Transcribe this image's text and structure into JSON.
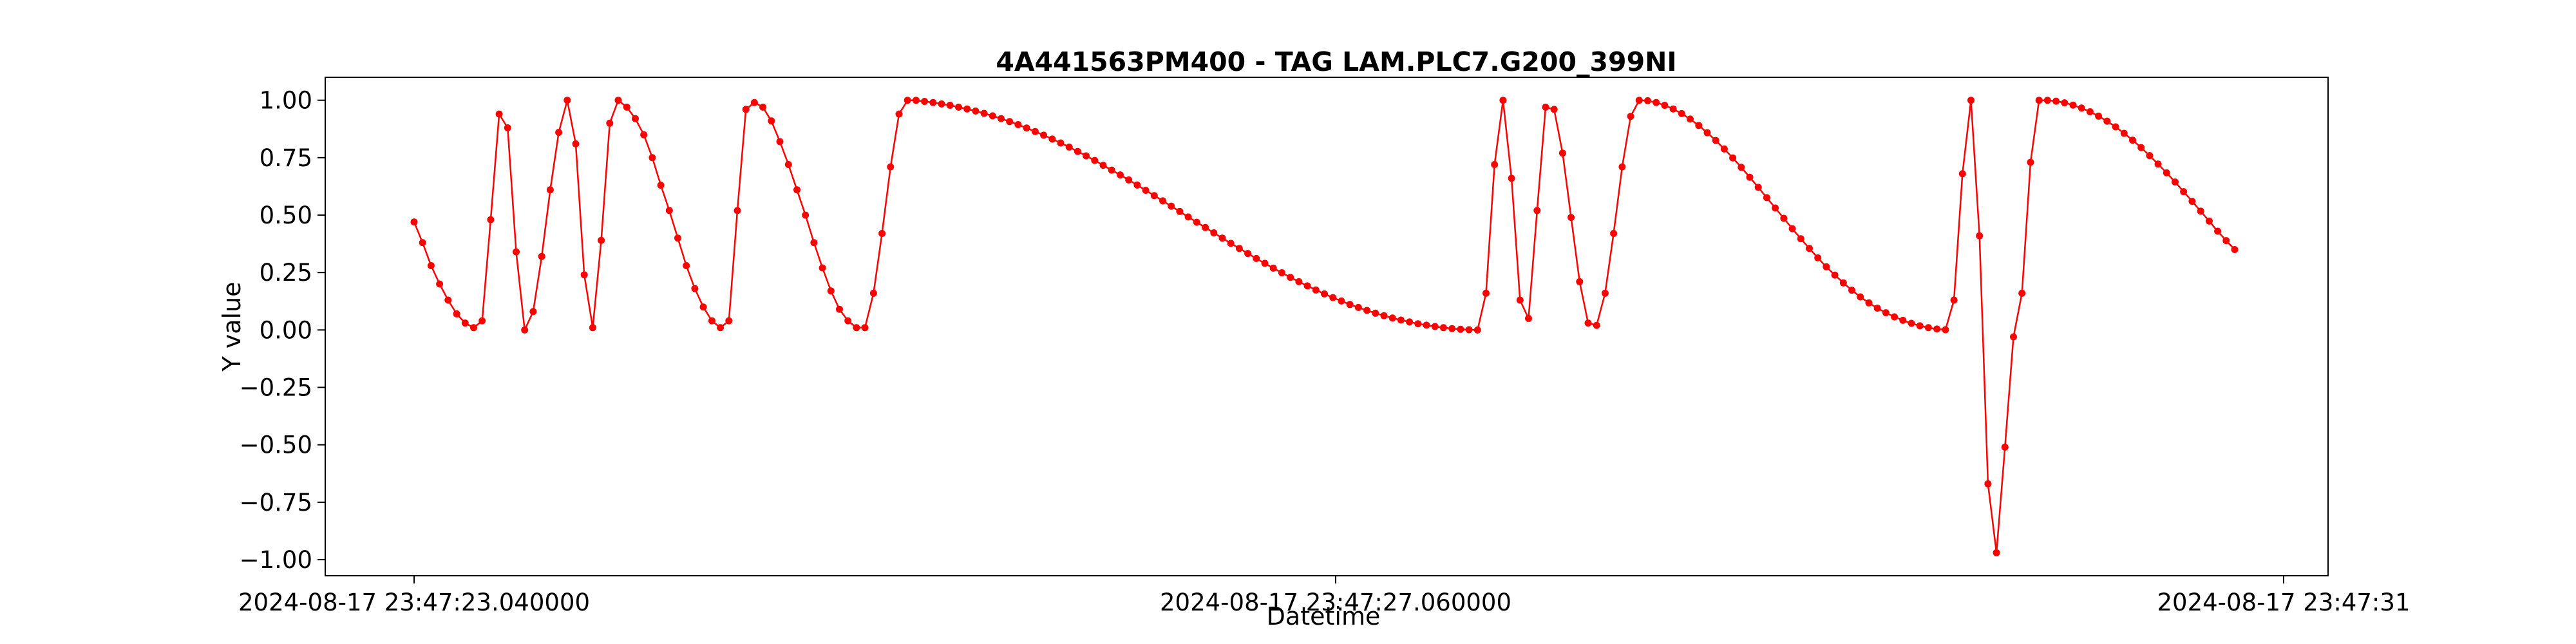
{
  "chart_data": {
    "type": "line",
    "title": "4A441563PM400 - TAG LAM.PLC7.G200_399NI",
    "xlabel": "Datetime",
    "ylabel": "Y value",
    "x_tick_labels": [
      "2024-08-17 23:47:23.040000",
      "2024-08-17 23:47:27.060000",
      "2024-08-17 23:47:31"
    ],
    "y_ticks": [
      -1.0,
      -0.75,
      -0.5,
      -0.25,
      0.0,
      0.25,
      0.5,
      0.75,
      1.0
    ],
    "y_tick_labels": [
      "−1.00",
      "−0.75",
      "−0.50",
      "−0.25",
      "0.00",
      "0.25",
      "0.50",
      "0.75",
      "1.00"
    ],
    "ylim": [
      -1.07,
      1.1
    ],
    "grid": false,
    "series": [
      {
        "color": "#ff0000",
        "marker": "circle",
        "values": [
          0.47,
          0.38,
          0.28,
          0.2,
          0.13,
          0.07,
          0.03,
          0.01,
          0.04,
          0.48,
          0.94,
          0.88,
          0.34,
          0.0,
          0.08,
          0.32,
          0.61,
          0.86,
          1.0,
          0.81,
          0.24,
          0.01,
          0.39,
          0.9,
          1.0,
          0.97,
          0.92,
          0.85,
          0.75,
          0.63,
          0.52,
          0.4,
          0.28,
          0.18,
          0.1,
          0.04,
          0.01,
          0.04,
          0.52,
          0.96,
          0.99,
          0.97,
          0.91,
          0.82,
          0.72,
          0.61,
          0.5,
          0.38,
          0.27,
          0.17,
          0.09,
          0.04,
          0.01,
          0.01,
          0.16,
          0.42,
          0.71,
          0.94,
          1.0,
          1.0,
          0.995,
          0.99,
          0.984,
          0.978,
          0.97,
          0.962,
          0.953,
          0.943,
          0.932,
          0.92,
          0.907,
          0.894,
          0.879,
          0.864,
          0.848,
          0.831,
          0.814,
          0.796,
          0.777,
          0.758,
          0.738,
          0.717,
          0.696,
          0.675,
          0.653,
          0.631,
          0.608,
          0.585,
          0.562,
          0.539,
          0.516,
          0.492,
          0.469,
          0.446,
          0.423,
          0.4,
          0.377,
          0.355,
          0.333,
          0.311,
          0.29,
          0.269,
          0.249,
          0.229,
          0.21,
          0.192,
          0.174,
          0.157,
          0.141,
          0.126,
          0.111,
          0.098,
          0.085,
          0.073,
          0.062,
          0.052,
          0.043,
          0.035,
          0.027,
          0.021,
          0.015,
          0.01,
          0.006,
          0.003,
          0.001,
          0.0,
          0.16,
          0.72,
          1.0,
          0.66,
          0.13,
          0.05,
          0.52,
          0.97,
          0.96,
          0.77,
          0.49,
          0.21,
          0.03,
          0.02,
          0.16,
          0.42,
          0.71,
          0.93,
          1.0,
          0.998,
          0.99,
          0.978,
          0.962,
          0.942,
          0.918,
          0.89,
          0.859,
          0.825,
          0.788,
          0.749,
          0.708,
          0.665,
          0.621,
          0.576,
          0.531,
          0.486,
          0.441,
          0.397,
          0.355,
          0.314,
          0.275,
          0.239,
          0.205,
          0.173,
          0.144,
          0.118,
          0.095,
          0.075,
          0.057,
          0.042,
          0.029,
          0.018,
          0.01,
          0.004,
          0.001,
          0.13,
          0.68,
          1.0,
          0.41,
          -0.67,
          -0.97,
          -0.51,
          -0.03,
          0.16,
          0.73,
          1.0,
          1.0,
          0.996,
          0.989,
          0.979,
          0.966,
          0.95,
          0.931,
          0.909,
          0.884,
          0.856,
          0.826,
          0.794,
          0.759,
          0.722,
          0.684,
          0.644,
          0.602,
          0.56,
          0.517,
          0.474,
          0.43,
          0.389,
          0.35
        ]
      }
    ]
  }
}
